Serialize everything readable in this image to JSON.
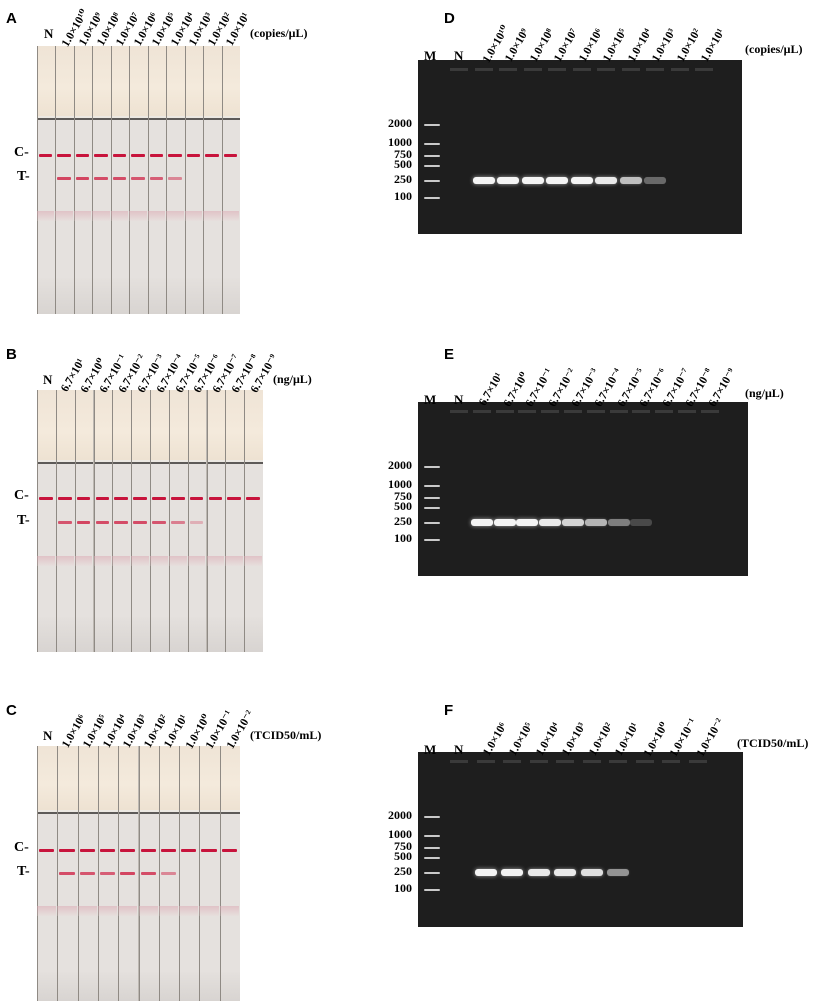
{
  "panels": {
    "A": {
      "letter": "A",
      "n_label": "N",
      "lanes": [
        "1.0×10¹⁰",
        "1.0×10⁹",
        "1.0×10⁸",
        "1.0×10⁷",
        "1.0×10⁶",
        "1.0×10⁵",
        "1.0×10⁴",
        "1.0×10³",
        "1.0×10²",
        "1.0×10¹"
      ],
      "unit": "(copies/μL)",
      "c_label": "C-",
      "t_label": "T-",
      "t_band_intensity": [
        0,
        0.95,
        0.95,
        0.9,
        0.9,
        0.85,
        0.8,
        0.55,
        0,
        0,
        0
      ]
    },
    "B": {
      "letter": "B",
      "n_label": "N",
      "lanes": [
        "6.7×10¹",
        "6.7×10⁰",
        "6.7×10⁻¹",
        "6.7×10⁻²",
        "6.7×10⁻³",
        "6.7×10⁻⁴",
        "6.7×10⁻⁵",
        "6.7×10⁻⁶",
        "6.7×10⁻⁷",
        "6.7×10⁻⁸",
        "6.7×10⁻⁹"
      ],
      "unit": "(ng/μL)",
      "c_label": "C-",
      "t_label": "T-",
      "t_band_intensity": [
        0,
        0.85,
        0.95,
        0.9,
        0.9,
        0.9,
        0.85,
        0.6,
        0.3,
        0,
        0,
        0
      ]
    },
    "C": {
      "letter": "C",
      "n_label": "N",
      "lanes": [
        "1.0×10⁶",
        "1.0×10⁵",
        "1.0×10⁴",
        "1.0×10³",
        "1.0×10²",
        "1.0×10¹",
        "1.0×10⁰",
        "1.0×10⁻¹",
        "1.0×10⁻²"
      ],
      "unit": "(TCID50/mL)",
      "c_label": "C-",
      "t_label": "T-",
      "t_band_intensity": [
        0,
        0.9,
        0.85,
        0.8,
        0.95,
        0.9,
        0.55,
        0,
        0,
        0
      ]
    },
    "D": {
      "letter": "D",
      "m_label": "M",
      "n_label": "N",
      "lanes": [
        "1.0×10¹⁰",
        "1.0×10⁹",
        "1.0×10⁸",
        "1.0×10⁷",
        "1.0×10⁶",
        "1.0×10⁵",
        "1.0×10⁴",
        "1.0×10³",
        "1.0×10²",
        "1.0×10¹"
      ],
      "unit": "(copies/μL)",
      "markers": [
        "2000",
        "1000",
        "750",
        "500",
        "250",
        "100"
      ],
      "band_intensity": [
        0,
        1,
        1,
        1,
        1,
        1,
        0.95,
        0.75,
        0.35,
        0,
        0,
        0
      ]
    },
    "E": {
      "letter": "E",
      "m_label": "M",
      "n_label": "N",
      "lanes": [
        "6.7×10¹",
        "6.7×10⁰",
        "6.7×10⁻¹",
        "6.7×10⁻²",
        "6.7×10⁻³",
        "6.7×10⁻⁴",
        "6.7×10⁻⁵",
        "6.7×10⁻⁶",
        "6.7×10⁻⁷",
        "6.7×10⁻⁸",
        "6.7×10⁻⁹"
      ],
      "unit": "(ng/μL)",
      "markers": [
        "2000",
        "1000",
        "750",
        "500",
        "250",
        "100"
      ],
      "band_intensity": [
        0,
        1,
        1,
        1,
        0.95,
        0.85,
        0.7,
        0.45,
        0.2,
        0,
        0,
        0,
        0
      ]
    },
    "F": {
      "letter": "F",
      "m_label": "M",
      "n_label": "N",
      "lanes": [
        "1.0×10⁶",
        "1.0×10⁵",
        "1.0×10⁴",
        "1.0×10³",
        "1.0×10²",
        "1.0×10¹",
        "1.0×10⁰",
        "1.0×10⁻¹",
        "1.0×10⁻²"
      ],
      "unit": "(TCID50/mL)",
      "markers": [
        "2000",
        "1000",
        "750",
        "500",
        "250",
        "100"
      ],
      "band_intensity": [
        0,
        1,
        1,
        0.95,
        0.95,
        0.9,
        0.55,
        0,
        0,
        0,
        0
      ]
    }
  },
  "colors": {
    "control_band": "#c8143c",
    "test_band": "#d23c5a",
    "gel_band": "#f4f4f4"
  }
}
